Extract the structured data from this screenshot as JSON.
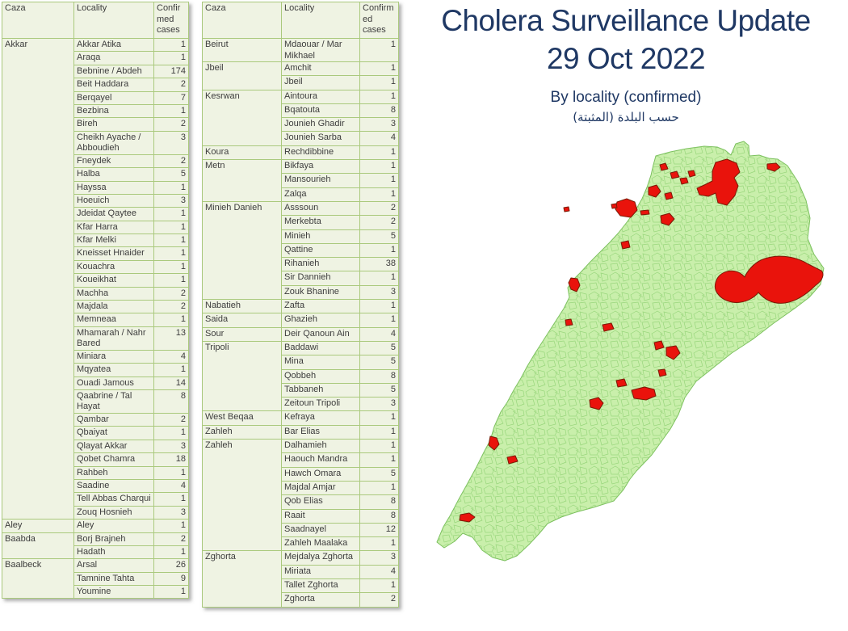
{
  "title": {
    "heading_line1": "Cholera Surveillance Update",
    "heading_line2": "29 Oct 2022",
    "subtitle": "By locality (confirmed)",
    "subtitle_arabic": "حسب البلدة (المثبتة)"
  },
  "table_header": {
    "caza": "Caza",
    "locality": "Locality",
    "cases": "Confirmed cases"
  },
  "colors": {
    "title_text": "#1f3864",
    "table_grid": "#aac97d",
    "table_fill": "#eff3e3",
    "table_text": "#3d3d3d",
    "map_land": "#c9efab",
    "map_boundaries": "#8fd173",
    "map_outline": "#7cc05e",
    "map_cases": "#e9130c",
    "map_case_outline": "#7a1c06"
  },
  "tables": {
    "left": [
      {
        "caza": "Akkar",
        "rows": [
          {
            "locality": "Akkar Atika",
            "cases": 1
          },
          {
            "locality": "Araqa",
            "cases": 1
          },
          {
            "locality": "Bebnine / Abdeh",
            "cases": 174
          },
          {
            "locality": "Beit Haddara",
            "cases": 2
          },
          {
            "locality": "Berqayel",
            "cases": 7
          },
          {
            "locality": "Bezbina",
            "cases": 1
          },
          {
            "locality": "Bireh",
            "cases": 2
          },
          {
            "locality": "Cheikh Ayache / Abboudieh",
            "cases": 3
          },
          {
            "locality": "Fneydek",
            "cases": 2
          },
          {
            "locality": "Halba",
            "cases": 5
          },
          {
            "locality": "Hayssa",
            "cases": 1
          },
          {
            "locality": "Hoeuich",
            "cases": 3
          },
          {
            "locality": "Jdeidat Qaytee",
            "cases": 1
          },
          {
            "locality": "Kfar Harra",
            "cases": 1
          },
          {
            "locality": "Kfar Melki",
            "cases": 1
          },
          {
            "locality": "Kneisset Hnaider",
            "cases": 1
          },
          {
            "locality": "Kouachra",
            "cases": 1
          },
          {
            "locality": "Koueikhat",
            "cases": 1
          },
          {
            "locality": "Machha",
            "cases": 2
          },
          {
            "locality": "Majdala",
            "cases": 2
          },
          {
            "locality": "Memneaa",
            "cases": 1
          },
          {
            "locality": "Mhamarah / Nahr Bared",
            "cases": 13
          },
          {
            "locality": "Miniara",
            "cases": 4
          },
          {
            "locality": "Mqyatea",
            "cases": 1
          },
          {
            "locality": "Ouadi Jamous",
            "cases": 14
          },
          {
            "locality": "Qaabrine / Tal Hayat",
            "cases": 8
          },
          {
            "locality": "Qambar",
            "cases": 2
          },
          {
            "locality": "Qbaiyat",
            "cases": 1
          },
          {
            "locality": "Qlayat Akkar",
            "cases": 3
          },
          {
            "locality": "Qobet Chamra",
            "cases": 18
          },
          {
            "locality": "Rahbeh",
            "cases": 1
          },
          {
            "locality": "Saadine",
            "cases": 4
          },
          {
            "locality": "Tell Abbas Charqui",
            "cases": 1
          },
          {
            "locality": "Zouq Hosnieh",
            "cases": 3
          }
        ]
      },
      {
        "caza": "Aley",
        "rows": [
          {
            "locality": "Aley",
            "cases": 1
          }
        ]
      },
      {
        "caza": "Baabda",
        "rows": [
          {
            "locality": "Borj Brajneh",
            "cases": 2
          },
          {
            "locality": "Hadath",
            "cases": 1
          }
        ]
      },
      {
        "caza": "Baalbeck",
        "rows": [
          {
            "locality": "Arsal",
            "cases": 26
          },
          {
            "locality": "Tamnine Tahta",
            "cases": 9
          },
          {
            "locality": "Youmine",
            "cases": 1
          }
        ]
      }
    ],
    "right": [
      {
        "caza": "Beirut",
        "rows": [
          {
            "locality": "Mdaouar / Mar Mikhael",
            "cases": 1
          }
        ]
      },
      {
        "caza": "Jbeil",
        "rows": [
          {
            "locality": "Amchit",
            "cases": 1
          },
          {
            "locality": "Jbeil",
            "cases": 1
          }
        ]
      },
      {
        "caza": "Kesrwan",
        "rows": [
          {
            "locality": "Aintoura",
            "cases": 1
          },
          {
            "locality": "Bqatouta",
            "cases": 8
          },
          {
            "locality": "Jounieh Ghadir",
            "cases": 3
          },
          {
            "locality": "Jounieh Sarba",
            "cases": 4
          }
        ]
      },
      {
        "caza": "Koura",
        "rows": [
          {
            "locality": "Rechdibbine",
            "cases": 1
          }
        ]
      },
      {
        "caza": "Metn",
        "rows": [
          {
            "locality": "Bikfaya",
            "cases": 1
          },
          {
            "locality": "Mansourieh",
            "cases": 1
          },
          {
            "locality": "Zalqa",
            "cases": 1
          }
        ]
      },
      {
        "caza": "Minieh Danieh",
        "rows": [
          {
            "locality": "Asssoun",
            "cases": 2
          },
          {
            "locality": "Merkebta",
            "cases": 2
          },
          {
            "locality": "Minieh",
            "cases": 5
          },
          {
            "locality": "Qattine",
            "cases": 1
          },
          {
            "locality": "Rihanieh",
            "cases": 38
          },
          {
            "locality": "Sir Dannieh",
            "cases": 1
          },
          {
            "locality": "Zouk Bhanine",
            "cases": 3
          }
        ]
      },
      {
        "caza": "Nabatieh",
        "rows": [
          {
            "locality": "Zafta",
            "cases": 1
          }
        ]
      },
      {
        "caza": "Saida",
        "rows": [
          {
            "locality": "Ghazieh",
            "cases": 1
          }
        ]
      },
      {
        "caza": "Sour",
        "rows": [
          {
            "locality": "Deir Qanoun Ain",
            "cases": 4
          }
        ]
      },
      {
        "caza": "Tripoli",
        "rows": [
          {
            "locality": "Baddawi",
            "cases": 5
          },
          {
            "locality": "Mina",
            "cases": 5
          },
          {
            "locality": "Qobbeh",
            "cases": 8
          },
          {
            "locality": "Tabbaneh",
            "cases": 5
          },
          {
            "locality": "Zeitoun Tripoli",
            "cases": 3
          }
        ]
      },
      {
        "caza": "West Beqaa",
        "rows": [
          {
            "locality": "Kefraya",
            "cases": 1
          }
        ]
      },
      {
        "caza": "Zahleh",
        "rows": [
          {
            "locality": "Bar Elias",
            "cases": 1
          }
        ]
      },
      {
        "caza": "Zahleh",
        "rows": [
          {
            "locality": "Dalhamieh",
            "cases": 1
          },
          {
            "locality": "Haouch Mandra",
            "cases": 1
          },
          {
            "locality": "Hawch Omara",
            "cases": 5
          },
          {
            "locality": "Majdal Amjar",
            "cases": 1
          },
          {
            "locality": "Qob Elias",
            "cases": 8
          },
          {
            "locality": "Raait",
            "cases": 8
          },
          {
            "locality": "Saadnayel",
            "cases": 12
          },
          {
            "locality": "Zahleh Maalaka",
            "cases": 1
          }
        ]
      },
      {
        "caza": "Zghorta",
        "rows": [
          {
            "locality": "Mejdalya Zghorta",
            "cases": 3
          },
          {
            "locality": "Miriata",
            "cases": 4
          },
          {
            "locality": "Tallet Zghorta",
            "cases": 1
          },
          {
            "locality": "Zghorta",
            "cases": 2
          }
        ]
      }
    ]
  },
  "map": {
    "region": "Lebanon",
    "legend_meaning": "red polygons = localities with confirmed cholera cases"
  }
}
